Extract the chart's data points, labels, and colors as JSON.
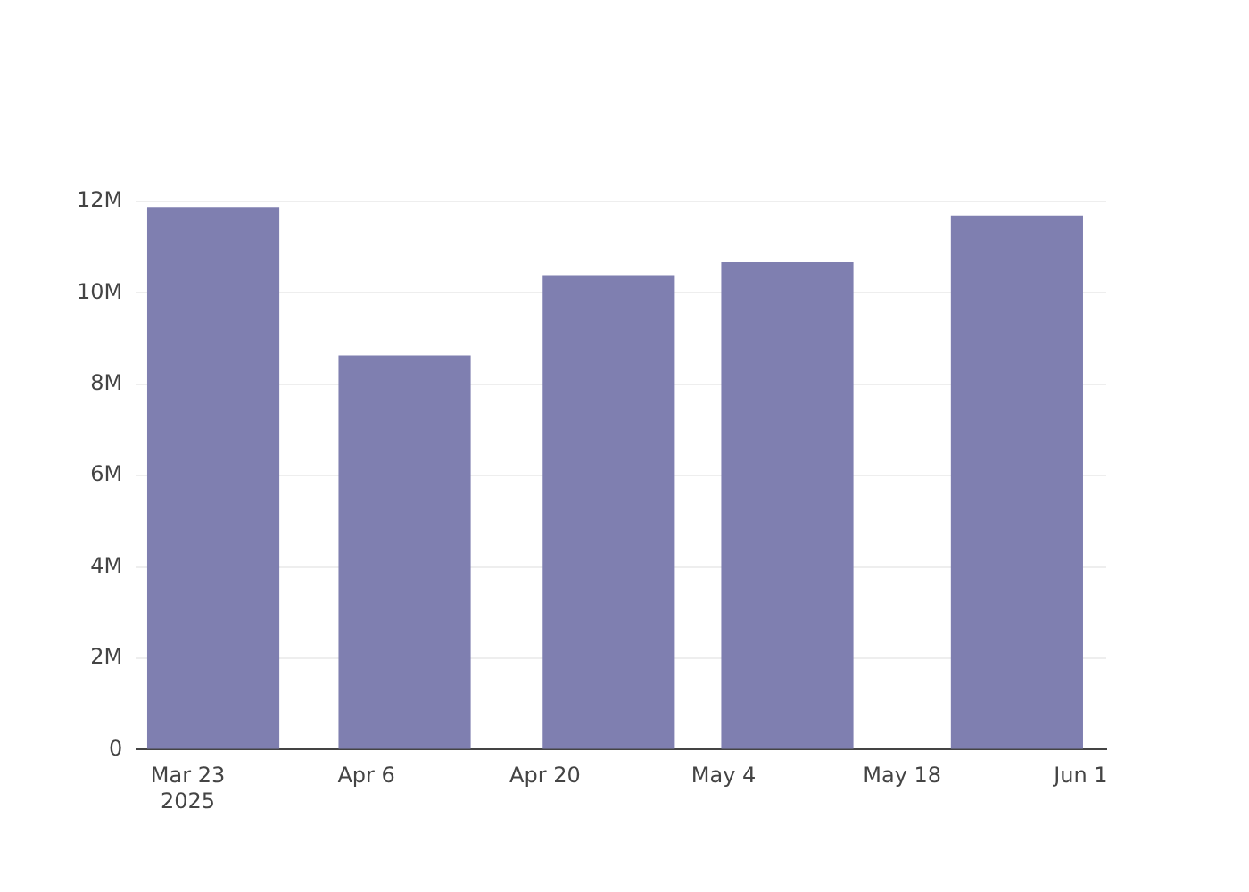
{
  "chart_data": {
    "type": "bar",
    "x": [
      "2025-03-25",
      "2025-04-09",
      "2025-04-25",
      "2025-05-09",
      "2025-05-27"
    ],
    "series": [
      {
        "color": "#7f7fb0",
        "values": [
          11.88,
          8.63,
          10.39,
          10.67,
          11.69
        ]
      }
    ],
    "xlim": [
      "2025-03-19",
      "2025-06-03"
    ],
    "xticks": [
      {
        "value": "2025-03-23",
        "label": "Mar 23\n2025"
      },
      {
        "value": "2025-04-06",
        "label": "Apr 6"
      },
      {
        "value": "2025-04-20",
        "label": "Apr 20"
      },
      {
        "value": "2025-05-04",
        "label": "May 4"
      },
      {
        "value": "2025-05-18",
        "label": "May 18"
      },
      {
        "value": "2025-06-01",
        "label": "Jun 1"
      }
    ],
    "ylim": [
      0,
      12
    ],
    "yticks": [
      {
        "value": 0,
        "label": "0"
      },
      {
        "value": 2,
        "label": "2M"
      },
      {
        "value": 4,
        "label": "4M"
      },
      {
        "value": 6,
        "label": "6M"
      },
      {
        "value": 8,
        "label": "8M"
      },
      {
        "value": 10,
        "label": "10M"
      },
      {
        "value": 12,
        "label": "12M"
      }
    ],
    "grid": "y"
  }
}
